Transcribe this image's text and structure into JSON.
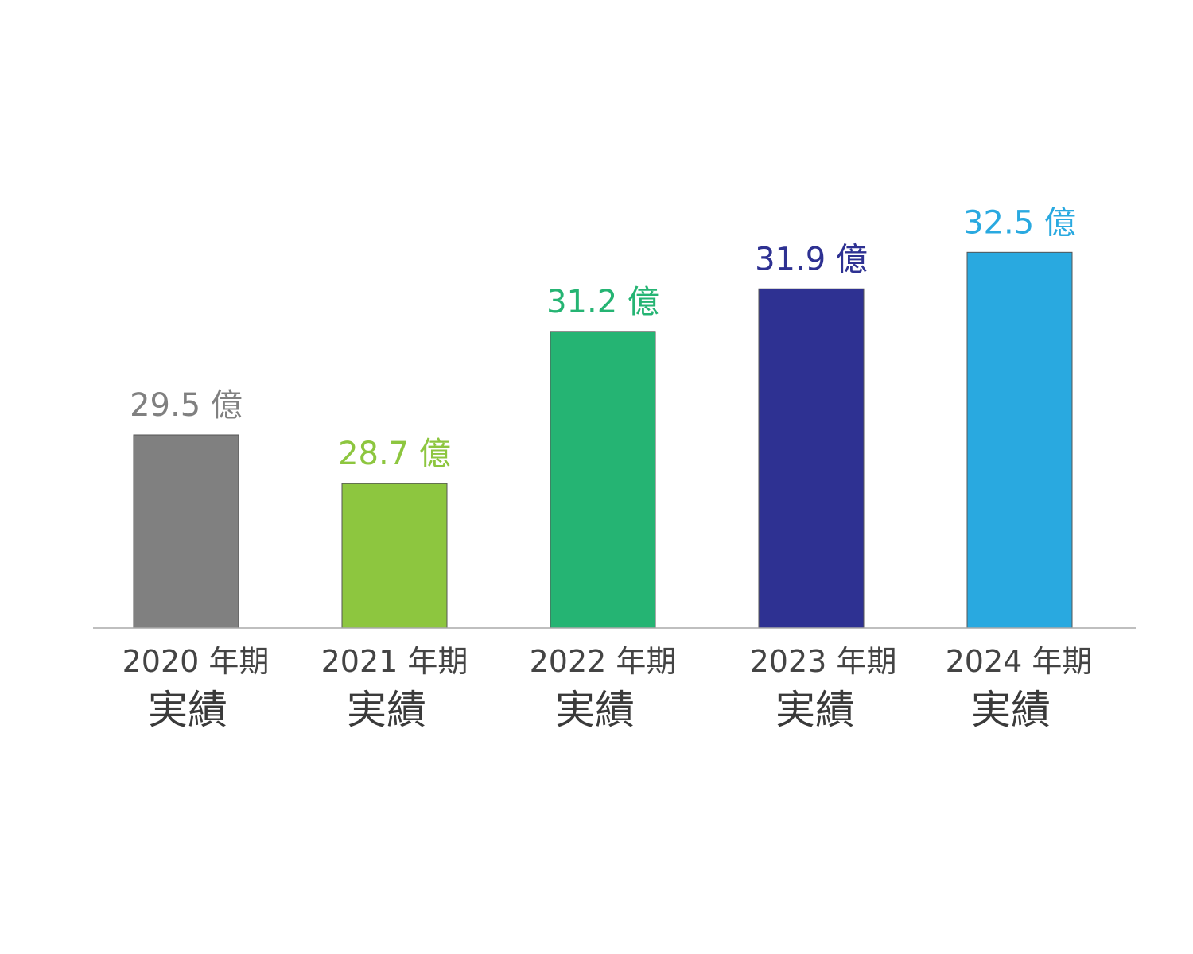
{
  "chart_data": {
    "type": "bar",
    "categories": [
      {
        "line1": "2020 年期",
        "line2": "実績"
      },
      {
        "line1": "2021 年期",
        "line2": "実績"
      },
      {
        "line1": "2022 年期",
        "line2": "実績"
      },
      {
        "line1": "2023 年期",
        "line2": "実績"
      },
      {
        "line1": "2024 年期",
        "line2": "実績"
      }
    ],
    "values": [
      29.5,
      28.7,
      31.2,
      31.9,
      32.5
    ],
    "value_labels": [
      "29.5 億",
      "28.7 億",
      "31.2 億",
      "31.9 億",
      "32.5 億"
    ],
    "colors": [
      "#808080",
      "#8dc63f",
      "#25b473",
      "#2e3192",
      "#29a9e0"
    ],
    "title": "",
    "xlabel": "",
    "ylabel": "",
    "grid": false,
    "legend": "none"
  }
}
